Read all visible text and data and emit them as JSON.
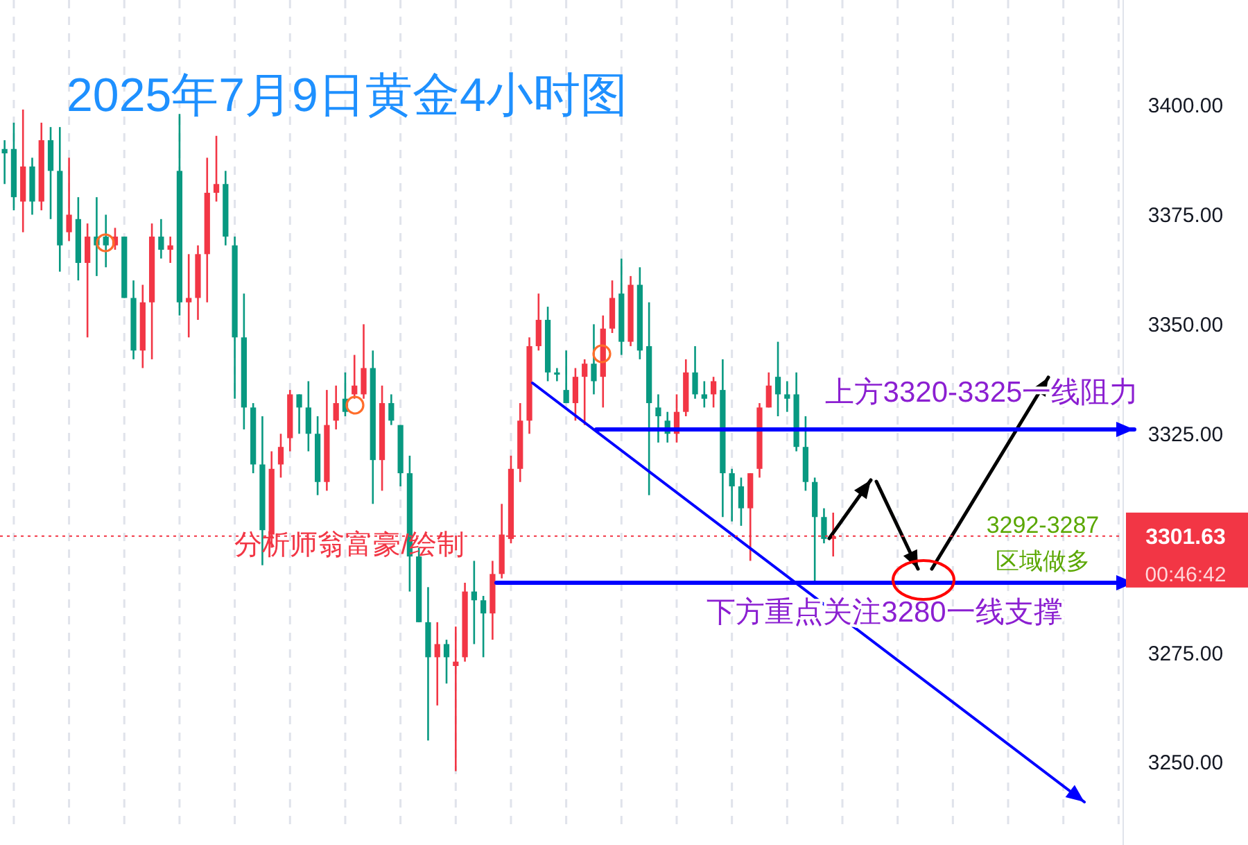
{
  "chart_data": {
    "type": "candlestick",
    "title": "2025年7月9日黄金4小时图",
    "categories": [
      null,
      null,
      null,
      null,
      null,
      null,
      null,
      null,
      null,
      null,
      null,
      null,
      null,
      null,
      null,
      null,
      null,
      null,
      null,
      null,
      null,
      null,
      null,
      null,
      null,
      null,
      null,
      null,
      null,
      null,
      null,
      null,
      null,
      null,
      null,
      null,
      null,
      null,
      null,
      null,
      null,
      null,
      null,
      null,
      null,
      null,
      null,
      null,
      null,
      null,
      null,
      null,
      null,
      null,
      null,
      null,
      null,
      null,
      null,
      null,
      null,
      null,
      null,
      null,
      null,
      null,
      null,
      null,
      null,
      null,
      null,
      null,
      null,
      null,
      null,
      null,
      null,
      null,
      null,
      null,
      null,
      null,
      null,
      null,
      null,
      null,
      null,
      null,
      null,
      null,
      null,
      null,
      null,
      null,
      null,
      null,
      null,
      null,
      null,
      null,
      null,
      null,
      null,
      null,
      null,
      null,
      null,
      null,
      null,
      null,
      null,
      null,
      null,
      null,
      null,
      null,
      null,
      null,
      null,
      null,
      null,
      null
    ],
    "ohlc": [
      [
        3390,
        3392,
        3382,
        3389
      ],
      [
        3390,
        3396,
        3376,
        3379
      ],
      [
        3378,
        3399,
        3371,
        3386
      ],
      [
        3386,
        3388,
        3375,
        3378
      ],
      [
        3378,
        3396,
        3376,
        3392
      ],
      [
        3392,
        3395,
        3374,
        3385
      ],
      [
        3385,
        3395,
        3362,
        3368
      ],
      [
        3371,
        3388,
        3369,
        3375
      ],
      [
        3374,
        3379,
        3360,
        3364
      ],
      [
        3364,
        3373,
        3347,
        3370
      ],
      [
        3370,
        3379,
        3361,
        3368
      ],
      [
        3370,
        3375,
        3363,
        3368
      ],
      [
        3368,
        3372,
        3367,
        3370
      ],
      [
        3370,
        3370,
        3356,
        3356
      ],
      [
        3356,
        3360,
        3342,
        3344
      ],
      [
        3344,
        3359,
        3340,
        3355
      ],
      [
        3355,
        3373,
        3342,
        3370
      ],
      [
        3370,
        3374,
        3365,
        3367
      ],
      [
        3367,
        3370,
        3364,
        3368
      ],
      [
        3385,
        3398,
        3352,
        3355
      ],
      [
        3355,
        3366,
        3347,
        3356
      ],
      [
        3356,
        3368,
        3351,
        3366
      ],
      [
        3366,
        3388,
        3355,
        3380
      ],
      [
        3380,
        3393,
        3378,
        3382
      ],
      [
        3382,
        3385,
        3368,
        3370
      ],
      [
        3368,
        3370,
        3333,
        3347
      ],
      [
        3347,
        3357,
        3326,
        3331
      ],
      [
        3331,
        3332,
        3316,
        3318
      ],
      [
        3318,
        3329,
        3295,
        3303
      ],
      [
        3302,
        3321,
        3299,
        3317
      ],
      [
        3318,
        3325,
        3315,
        3322
      ],
      [
        3324,
        3335,
        3321,
        3334
      ],
      [
        3334,
        3334,
        3325,
        3331
      ],
      [
        3331,
        3337,
        3321,
        3325
      ],
      [
        3325,
        3329,
        3311,
        3314
      ],
      [
        3314,
        3335,
        3312,
        3327
      ],
      [
        3328,
        3336,
        3326,
        3332
      ],
      [
        3333,
        3339,
        3329,
        3330
      ],
      [
        3334,
        3343,
        3333,
        3336
      ],
      [
        3334,
        3350,
        3333,
        3340
      ],
      [
        3340,
        3344,
        3309,
        3319
      ],
      [
        3319,
        3336,
        3312,
        3332
      ],
      [
        3332,
        3334,
        3327,
        3328
      ],
      [
        3327,
        3327,
        3313,
        3316
      ],
      [
        3316,
        3320,
        3289,
        3297
      ],
      [
        3297,
        3299,
        3282,
        3282
      ],
      [
        3282,
        3290,
        3255,
        3274
      ],
      [
        3274,
        3282,
        3263,
        3277
      ],
      [
        3277,
        3278,
        3268,
        3274
      ],
      [
        3272,
        3281,
        3248,
        3273
      ],
      [
        3274,
        3291,
        3273,
        3289
      ],
      [
        3289,
        3296,
        3277,
        3287
      ],
      [
        3287,
        3288,
        3274,
        3284
      ],
      [
        3284,
        3296,
        3278,
        3293
      ],
      [
        3293,
        3309,
        3292,
        3302
      ],
      [
        3301,
        3320,
        3300,
        3317
      ],
      [
        3317,
        3332,
        3314,
        3328
      ],
      [
        3328,
        3347,
        3325,
        3345
      ],
      [
        3345,
        3357,
        3344,
        3351
      ],
      [
        3351,
        3354,
        3337,
        3339
      ],
      [
        3339,
        3340,
        3337,
        3338.5
      ],
      [
        3335,
        3344,
        3332,
        3332
      ],
      [
        3332,
        3340,
        3328,
        3338
      ],
      [
        3338,
        3342,
        3327,
        3341
      ],
      [
        3341,
        3350,
        3334,
        3337
      ],
      [
        3338,
        3352,
        3331,
        3349
      ],
      [
        3349,
        3360,
        3348,
        3356
      ],
      [
        3357,
        3365,
        3343,
        3346
      ],
      [
        3346,
        3361,
        3345,
        3359
      ],
      [
        3359,
        3363,
        3342,
        3344
      ],
      [
        3345,
        3355,
        3311,
        3332
      ],
      [
        3331,
        3334,
        3323,
        3329
      ],
      [
        3328,
        3330,
        3323,
        3325
      ],
      [
        3325,
        3334,
        3323,
        3330
      ],
      [
        3330,
        3342,
        3329,
        3339
      ],
      [
        3339,
        3345,
        3333,
        3334
      ],
      [
        3334,
        3337,
        3331,
        3333
      ],
      [
        3334,
        3338,
        3331,
        3337
      ],
      [
        3335,
        3342,
        3306,
        3316
      ],
      [
        3316,
        3317,
        3305,
        3313
      ],
      [
        3313,
        3315,
        3304,
        3308
      ],
      [
        3308,
        3316,
        3296,
        3316
      ],
      [
        3317,
        3332,
        3315,
        3331
      ],
      [
        3331,
        3339,
        3331,
        3336
      ],
      [
        3338,
        3346,
        3329,
        3334
      ],
      [
        3334,
        3337,
        3330,
        3333
      ],
      [
        3334,
        3339,
        3321,
        3322
      ],
      [
        3322,
        3329,
        3312,
        3314
      ],
      [
        3314,
        3315,
        3291,
        3306
      ],
      [
        3306,
        3308,
        3300,
        3301
      ],
      [
        3301,
        3307,
        3297,
        3301.63
      ],
      null,
      null,
      null,
      null,
      null,
      null,
      null,
      null,
      null,
      null,
      null,
      null,
      null,
      null,
      null,
      null,
      null,
      null,
      null,
      null,
      null,
      null,
      null,
      null,
      null,
      null,
      null,
      null,
      null,
      null,
      null
    ],
    "colors": [
      "#089981",
      "#089981",
      "#f23645",
      "#089981",
      "#f23645",
      "#089981",
      "#089981",
      "#f23645",
      "#089981",
      "#f23645",
      "#089981",
      "#089981",
      "#f23645",
      "#089981",
      "#089981",
      "#f23645",
      "#f23645",
      "#089981",
      "#f23645",
      "#089981",
      "#f23645",
      "#f23645",
      "#f23645",
      "#f23645",
      "#089981",
      "#089981",
      "#089981",
      "#089981",
      "#089981",
      "#f23645",
      "#f23645",
      "#f23645",
      "#089981",
      "#089981",
      "#089981",
      "#f23645",
      "#f23645",
      "#089981",
      "#f23645",
      "#f23645",
      "#089981",
      "#f23645",
      "#089981",
      "#089981",
      "#089981",
      "#089981",
      "#089981",
      "#f23645",
      "#089981",
      "#f23645",
      "#f23645",
      "#089981",
      "#089981",
      "#f23645",
      "#f23645",
      "#f23645",
      "#f23645",
      "#f23645",
      "#f23645",
      "#089981",
      "#089981",
      "#089981",
      "#f23645",
      "#f23645",
      "#089981",
      "#f23645",
      "#f23645",
      "#089981",
      "#f23645",
      "#089981",
      "#089981",
      "#089981",
      "#089981",
      "#f23645",
      "#f23645",
      "#089981",
      "#089981",
      "#f23645",
      "#089981",
      "#089981",
      "#089981",
      "#f23645",
      "#f23645",
      "#f23645",
      "#089981",
      "#089981",
      "#089981",
      "#089981",
      "#089981",
      "#089981",
      "#f23645",
      null,
      null,
      null,
      null,
      null,
      null,
      null,
      null,
      null,
      null,
      null,
      null,
      null,
      null,
      null,
      null,
      null,
      null,
      null,
      null,
      null,
      null,
      null,
      null,
      null,
      null,
      null,
      null,
      null,
      null,
      null
    ],
    "ylim": [
      3234,
      3424
    ],
    "yticks": [
      {
        "value": 3250,
        "label": "3250.00"
      },
      {
        "value": 3275,
        "label": "3275.00"
      },
      {
        "value": 3325,
        "label": "3325.00"
      },
      {
        "value": 3350,
        "label": "3350.00"
      },
      {
        "value": 3375,
        "label": "3375.00"
      },
      {
        "value": 3400,
        "label": "3400.00"
      }
    ],
    "tick_labels": "y",
    "grid": "x",
    "ref_lines": [
      {
        "axis": "y",
        "value": 3301.63,
        "label": "3301.63",
        "color": "#f23645",
        "line_style": "dotted"
      },
      {
        "axis": "y",
        "value": 3326,
        "label": "上方3320-3325一线阻力",
        "color": "#0000ff",
        "line_style": "solid"
      },
      {
        "axis": "y",
        "value": 3291,
        "label": "下方重点关注3280一线支撑",
        "color": "#0000ff",
        "line_style": "solid"
      }
    ],
    "annotations": [
      "分析师翁富豪/绘制",
      "3292-3287",
      "区域做多",
      "00:46:42"
    ]
  }
}
